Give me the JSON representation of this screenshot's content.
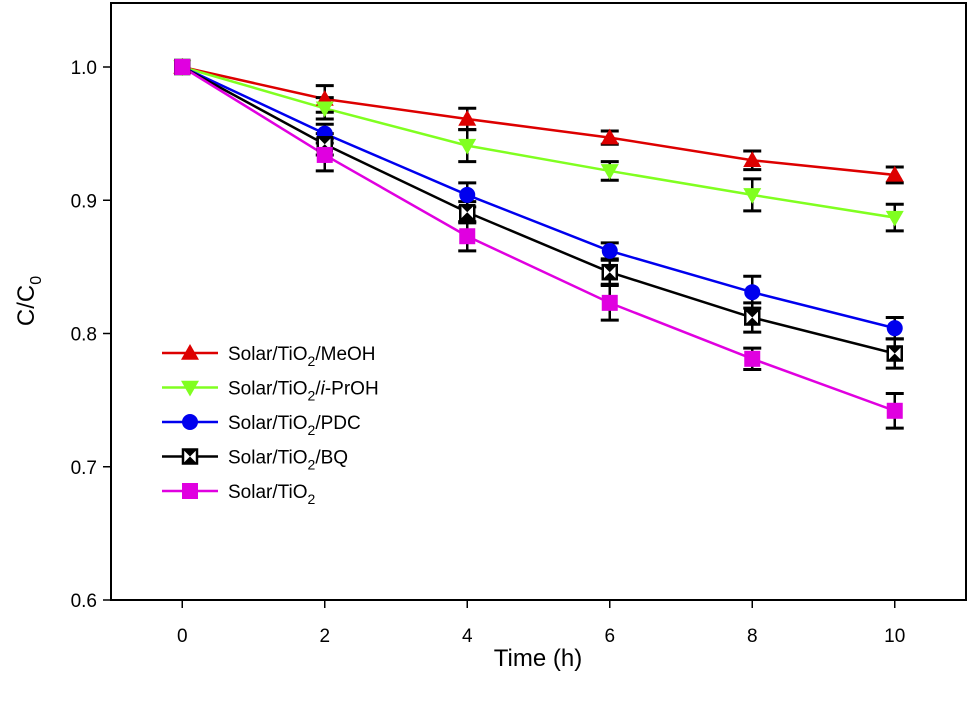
{
  "chart_data": {
    "type": "line",
    "title": "",
    "xlabel": "Time (h)",
    "ylabel": "C/C0",
    "ylabel_parts": {
      "main": "C/C",
      "sub": "0"
    },
    "xlim": [
      -1,
      11
    ],
    "ylim": [
      0.6,
      1.05
    ],
    "x_ticks": [
      0,
      2,
      4,
      6,
      8,
      10
    ],
    "x_tick_labels": [
      "0",
      "2",
      "4",
      "6",
      "8",
      "10"
    ],
    "y_ticks": [
      0.6,
      0.7,
      0.8,
      0.9,
      1.0
    ],
    "y_tick_labels": [
      "0.6",
      "0.7",
      "0.8",
      "0.9",
      "1.0"
    ],
    "grid": false,
    "legend_position": "center-left",
    "x": [
      0,
      2,
      4,
      6,
      8,
      10
    ],
    "series": [
      {
        "name": "Solar/TiO2/MeOH",
        "label_parts": {
          "pre": "Solar/TiO",
          "sub": "2",
          "post": "/MeOH",
          "italic": ""
        },
        "color": "#dd0000",
        "marker": "triangle-up",
        "values": [
          1.0,
          0.976,
          0.961,
          0.947,
          0.93,
          0.919
        ],
        "errors": [
          0.0,
          0.01,
          0.008,
          0.005,
          0.007,
          0.006
        ]
      },
      {
        "name": "Solar/TiO2/i-PrOH",
        "label_parts": {
          "pre": "Solar/TiO",
          "sub": "2",
          "post": "-PrOH",
          "italic": "i"
        },
        "color": "#80ff20",
        "marker": "triangle-down",
        "values": [
          1.0,
          0.969,
          0.941,
          0.922,
          0.904,
          0.887
        ],
        "errors": [
          0.0,
          0.008,
          0.012,
          0.007,
          0.012,
          0.01
        ]
      },
      {
        "name": "Solar/TiO2/PDC",
        "label_parts": {
          "pre": "Solar/TiO",
          "sub": "2",
          "post": "/PDC",
          "italic": ""
        },
        "color": "#0000ee",
        "marker": "circle",
        "values": [
          1.0,
          0.95,
          0.904,
          0.862,
          0.831,
          0.804
        ],
        "errors": [
          0.0,
          0.007,
          0.009,
          0.006,
          0.012,
          0.008
        ]
      },
      {
        "name": "Solar/TiO2/BQ",
        "label_parts": {
          "pre": "Solar/TiO",
          "sub": "2",
          "post": "/BQ",
          "italic": ""
        },
        "color": "#000000",
        "marker": "bowtie-square",
        "values": [
          1.0,
          0.942,
          0.891,
          0.846,
          0.812,
          0.785
        ],
        "errors": [
          0.0,
          0.008,
          0.008,
          0.009,
          0.011,
          0.011
        ]
      },
      {
        "name": "Solar/TiO2",
        "label_parts": {
          "pre": "Solar/TiO",
          "sub": "2",
          "post": "",
          "italic": ""
        },
        "color": "#e000e0",
        "marker": "square",
        "values": [
          1.0,
          0.934,
          0.873,
          0.823,
          0.781,
          0.742
        ],
        "errors": [
          0.0,
          0.012,
          0.011,
          0.013,
          0.008,
          0.013
        ]
      }
    ]
  }
}
